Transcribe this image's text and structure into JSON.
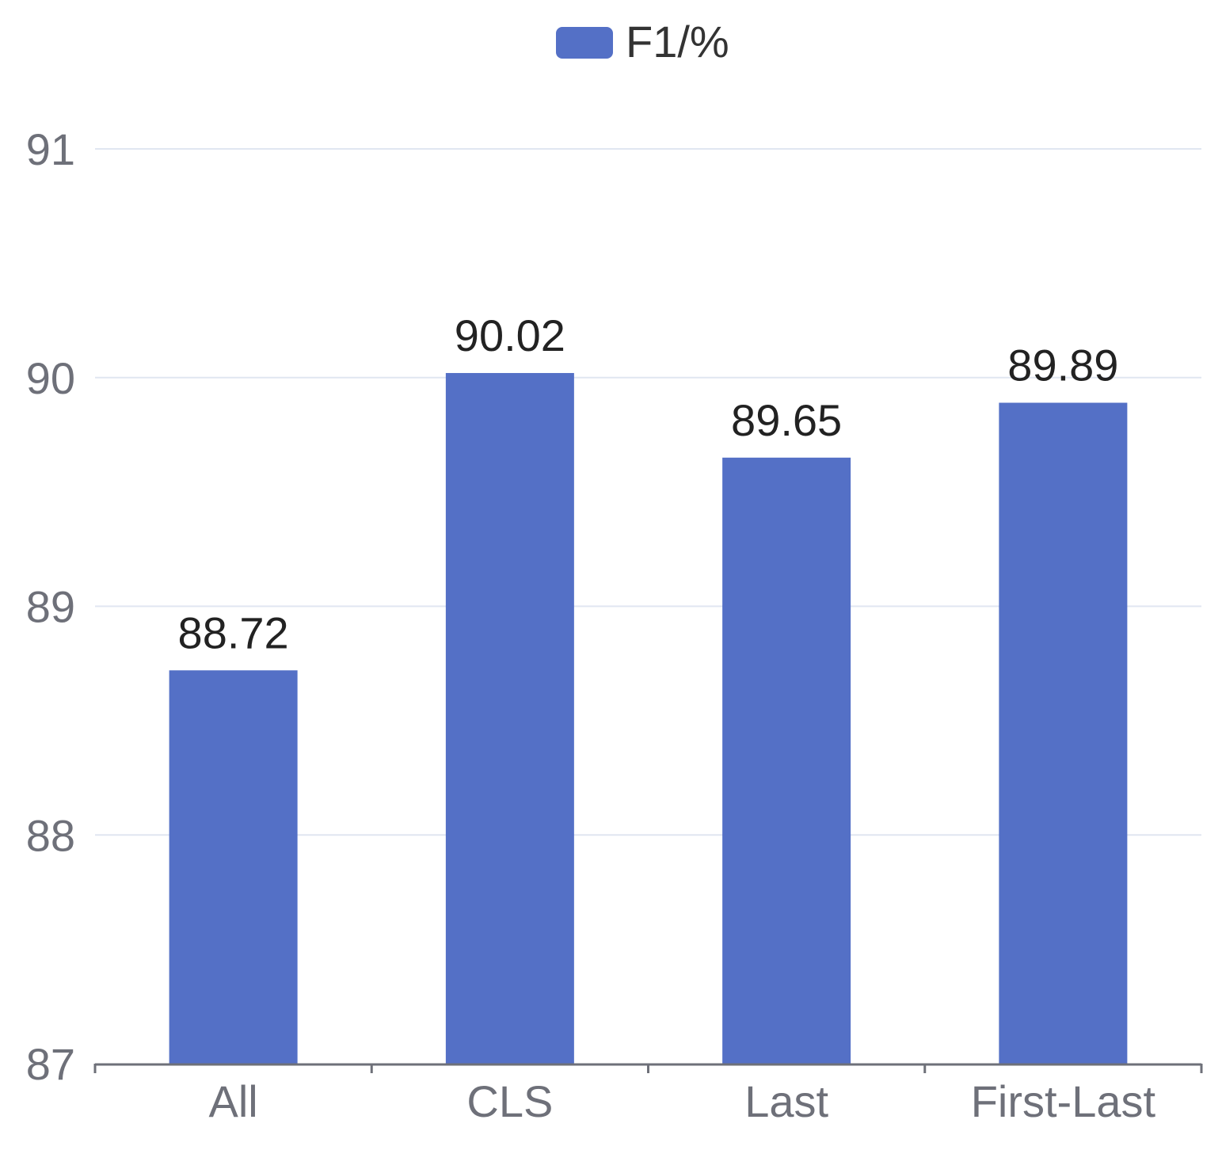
{
  "chart_data": {
    "type": "bar",
    "title": "",
    "xlabel": "",
    "ylabel": "",
    "categories": [
      "All",
      "CLS",
      "Last",
      "First-Last"
    ],
    "series": [
      {
        "name": "F1/%",
        "values": [
          88.72,
          90.02,
          89.65,
          89.89
        ],
        "color": "#5470c6"
      }
    ],
    "value_labels": [
      "88.72",
      "90.02",
      "89.65",
      "89.89"
    ],
    "ylim": [
      87,
      91
    ],
    "yticks": [
      87,
      88,
      89,
      90,
      91
    ],
    "ytick_labels": [
      "87",
      "88",
      "89",
      "90",
      "91"
    ],
    "grid": true,
    "legend": {
      "position": "top-center",
      "entries": [
        "F1/%"
      ]
    },
    "colors": {
      "bar": "#5470c6",
      "grid": "#e0e6f1",
      "axis": "#6e7079",
      "tick_text": "#6e7079",
      "value_text": "#222222",
      "legend_text": "#333333"
    }
  }
}
